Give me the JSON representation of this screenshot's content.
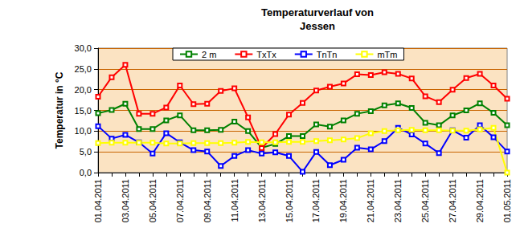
{
  "chart_data": {
    "type": "line",
    "title": "Temperaturverlauf von\nJessen",
    "y_label": "Temperatur in °C",
    "categories": [
      "01.04.2011",
      null,
      "03.04.2011",
      null,
      "05.04.2011",
      null,
      "07.04.2011",
      null,
      "09.04.2011",
      null,
      "11.04.2011",
      null,
      "13.04.2011",
      null,
      "15.04.2011",
      null,
      "17.04.2011",
      null,
      "19.04.2011",
      null,
      "21.04.2011",
      null,
      "23.04.2011",
      null,
      "25.04.2011",
      null,
      "27.04.2011",
      null,
      "29.04.2011",
      null,
      "01.05.2011"
    ],
    "series": [
      {
        "name": "2 m",
        "color": "#008000",
        "values": [
          14.3,
          15.1,
          16.6,
          10.5,
          10.5,
          12.6,
          13.8,
          10.2,
          10.2,
          10.3,
          12.3,
          10.0,
          6.0,
          6.9,
          8.8,
          8.8,
          11.6,
          11.1,
          12.6,
          14.2,
          14.8,
          16.2,
          16.7,
          15.6,
          12.0,
          11.4,
          13.8,
          15.0,
          16.7,
          14.4,
          11.4
        ]
      },
      {
        "name": "TxTx",
        "color": "#ff0000",
        "values": [
          18.3,
          23.0,
          26.0,
          14.2,
          14.2,
          15.7,
          21.0,
          16.5,
          16.6,
          19.7,
          20.3,
          13.3,
          5.9,
          9.3,
          14.0,
          16.8,
          19.8,
          20.7,
          21.5,
          23.7,
          23.5,
          24.2,
          23.8,
          22.7,
          18.4,
          17.0,
          20.0,
          22.8,
          23.8,
          21.0,
          17.8
        ]
      },
      {
        "name": "TnTn",
        "color": "#0000ff",
        "values": [
          11.2,
          8.2,
          9.1,
          7.3,
          4.6,
          9.5,
          7.3,
          5.4,
          5.1,
          1.6,
          4.0,
          5.4,
          4.6,
          4.9,
          4.0,
          0.2,
          5.0,
          1.8,
          3.1,
          6.0,
          5.6,
          7.6,
          10.8,
          9.2,
          7.0,
          4.7,
          10.2,
          8.4,
          11.4,
          8.5,
          5.1
        ]
      },
      {
        "name": "mTm",
        "color": "#ffff00",
        "values": [
          7.1,
          7.2,
          7.2,
          7.2,
          7.2,
          7.0,
          7.0,
          7.1,
          7.1,
          7.1,
          7.2,
          7.4,
          7.3,
          7.3,
          7.4,
          7.4,
          7.6,
          7.8,
          8.0,
          8.3,
          9.5,
          10.0,
          10.2,
          10.3,
          10.2,
          10.2,
          10.1,
          10.1,
          10.4,
          10.8,
          0.0
        ]
      }
    ],
    "ylim": [
      0,
      30
    ],
    "yticks": [
      {
        "value": 0,
        "label": "0,0"
      },
      {
        "value": 5,
        "label": "5,0"
      },
      {
        "value": 10,
        "label": "10,0"
      },
      {
        "value": 15,
        "label": "15,0"
      },
      {
        "value": 20,
        "label": "20,0"
      },
      {
        "value": 25,
        "label": "25,0"
      },
      {
        "value": 30,
        "label": "30,0"
      }
    ],
    "grid": true,
    "legend": "top",
    "marker": "square"
  }
}
